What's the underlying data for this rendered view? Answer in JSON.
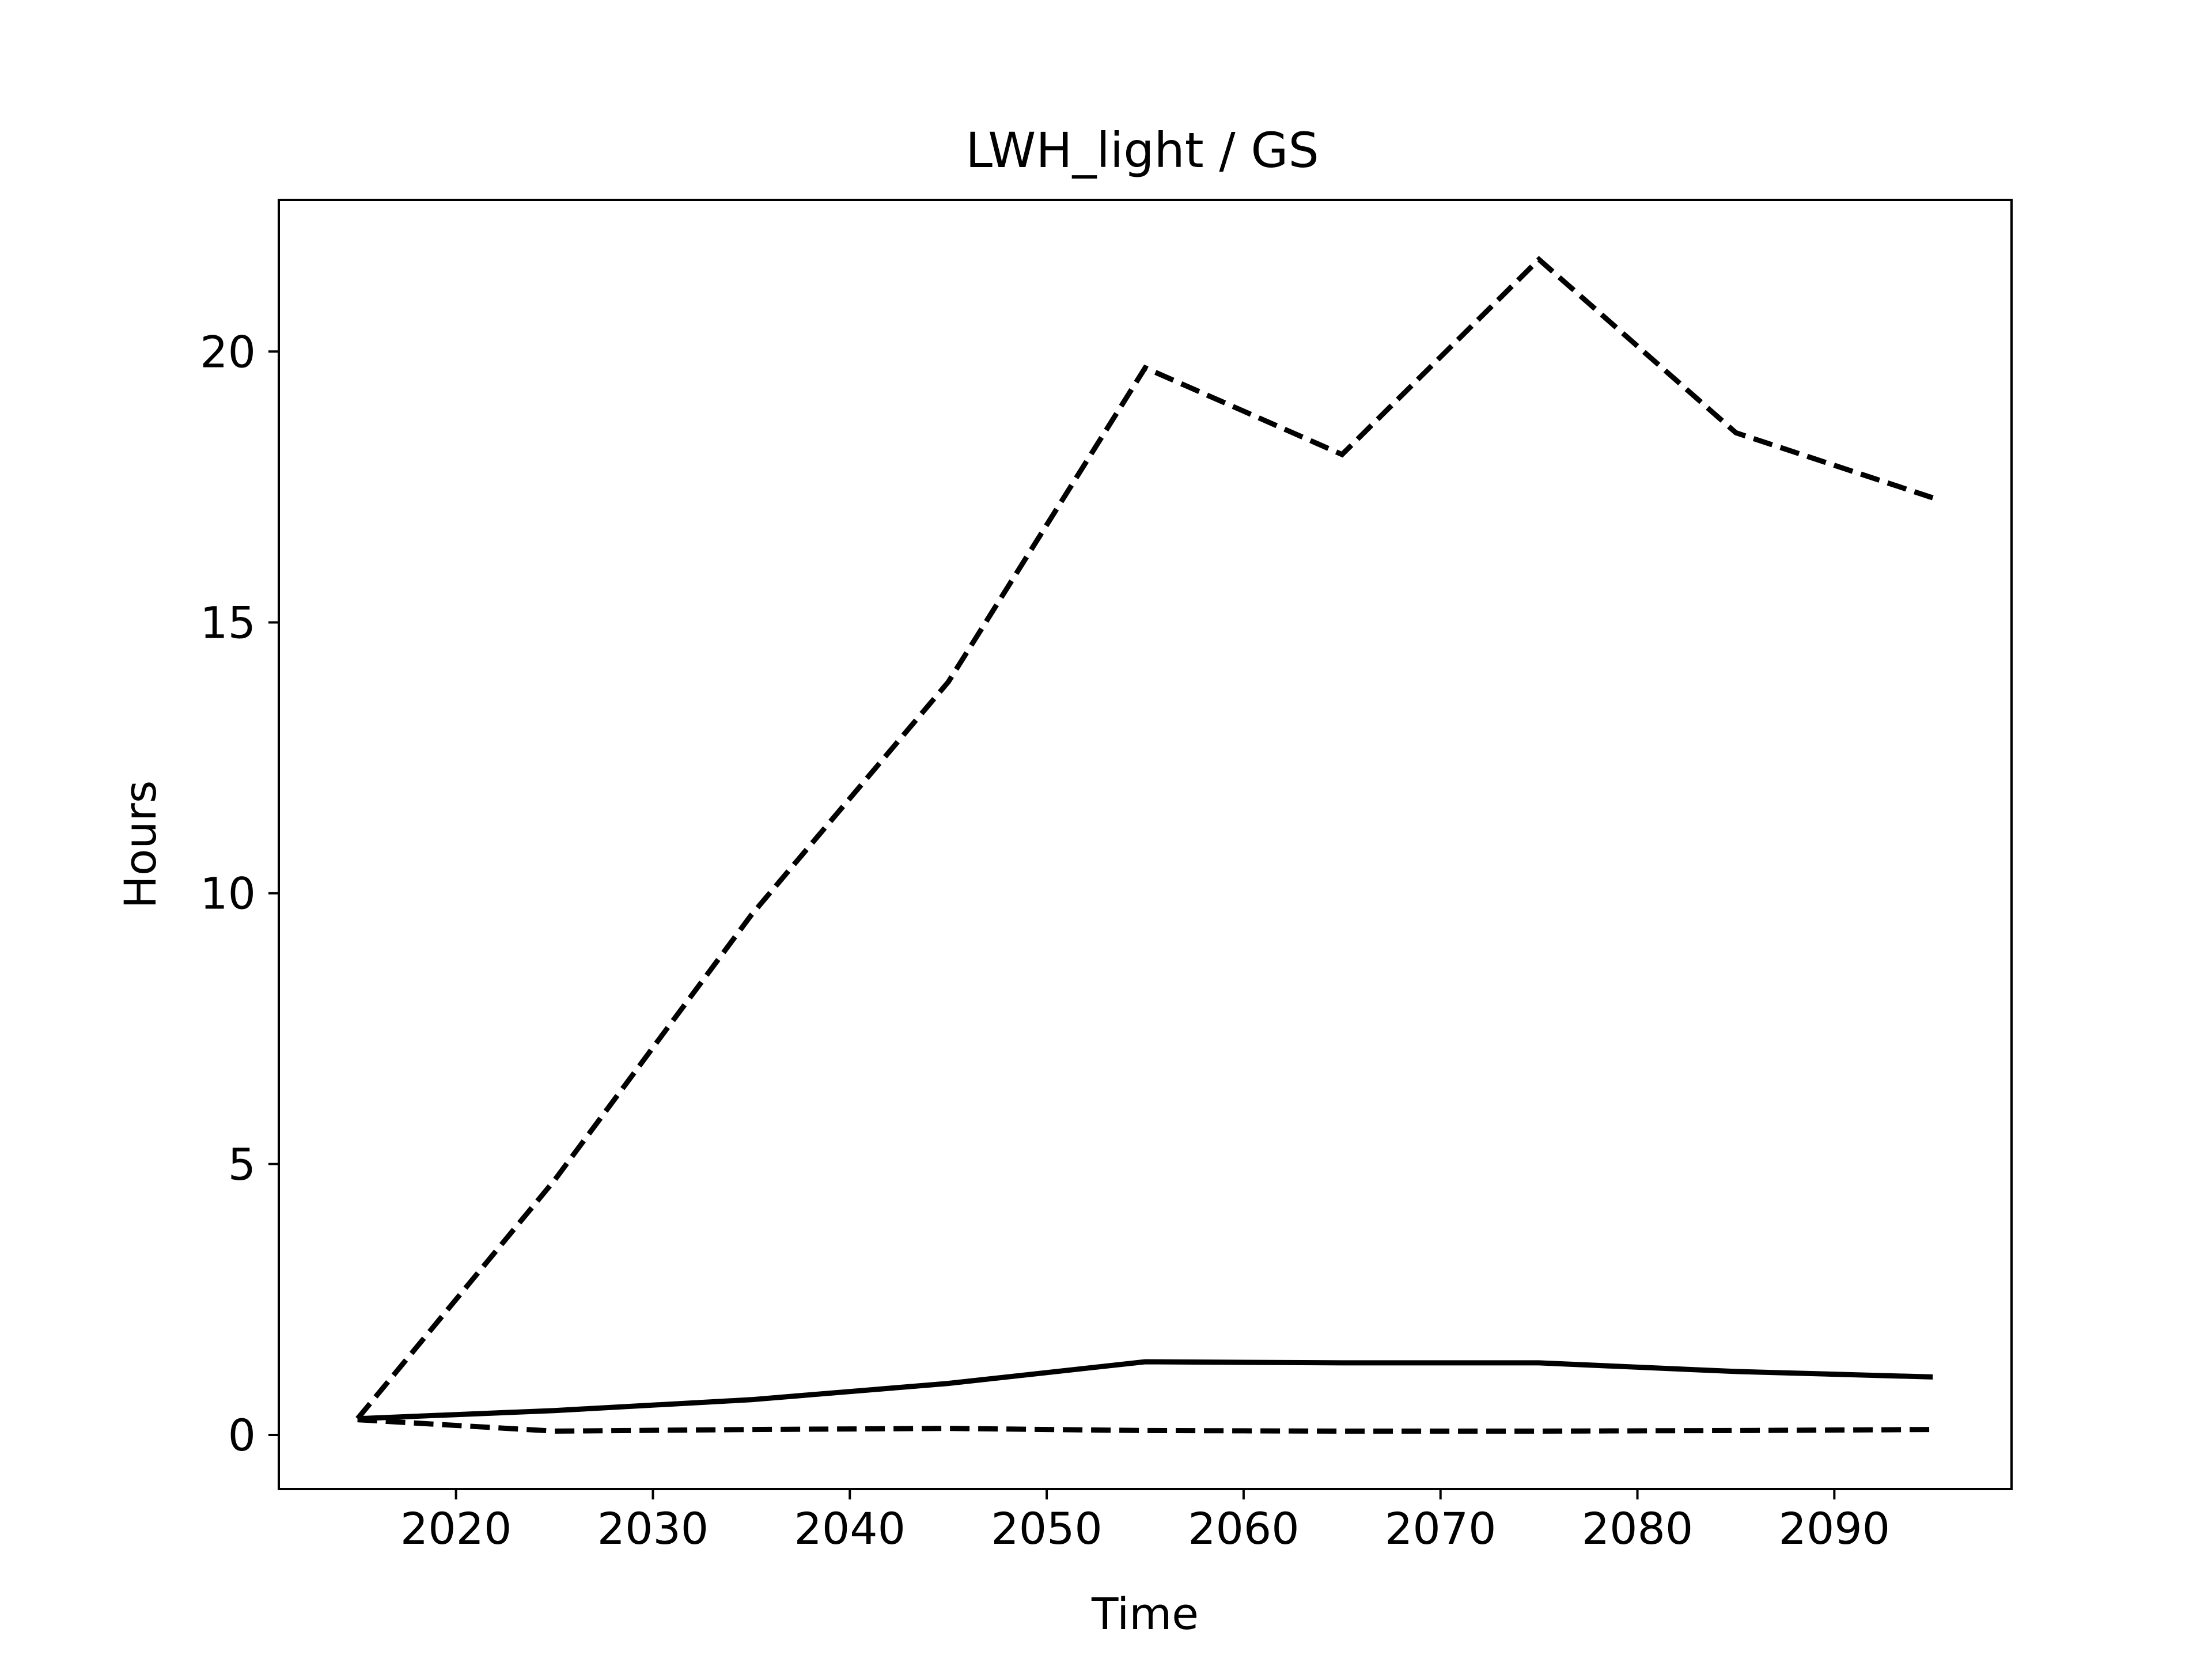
{
  "chart_data": {
    "type": "line",
    "title": "LWH_light / GS",
    "xlabel": "Time",
    "ylabel": "Hours",
    "xlim": [
      2011,
      2099
    ],
    "ylim": [
      -1,
      22.8
    ],
    "xticks": [
      2020,
      2030,
      2040,
      2050,
      2060,
      2070,
      2080,
      2090
    ],
    "xtick_labels": [
      "2020",
      "2030",
      "2040",
      "2050",
      "2060",
      "2070",
      "2080",
      "2090"
    ],
    "yticks": [
      0,
      5,
      10,
      15,
      20
    ],
    "ytick_labels": [
      "0",
      "5",
      "10",
      "15",
      "20"
    ],
    "grid": false,
    "legend": "none",
    "x": [
      2015,
      2025,
      2035,
      2045,
      2055,
      2065,
      2075,
      2085,
      2095
    ],
    "series": [
      {
        "style": "dashed",
        "color": "#000000",
        "values": [
          0.3,
          4.7,
          9.6,
          13.9,
          19.7,
          18.1,
          21.7,
          18.5,
          17.3
        ]
      },
      {
        "style": "solid",
        "color": "#000000",
        "values": [
          0.3,
          0.45,
          0.65,
          0.95,
          1.35,
          1.33,
          1.33,
          1.17,
          1.07
        ]
      },
      {
        "style": "dashed",
        "color": "#000000",
        "values": [
          0.28,
          0.07,
          0.1,
          0.12,
          0.08,
          0.07,
          0.07,
          0.08,
          0.1
        ]
      }
    ]
  }
}
